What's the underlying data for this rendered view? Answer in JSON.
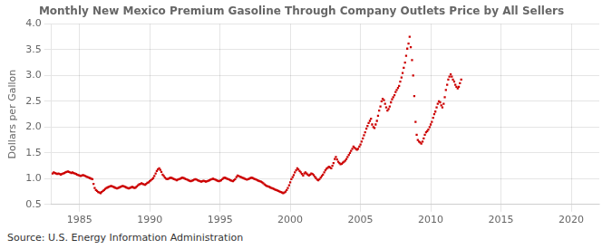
{
  "chart_data": {
    "type": "scatter",
    "title": "Monthly New Mexico Premium Gasoline Through Company Outlets Price by All Sellers",
    "ylabel": "Dollars per Gallon",
    "annotations": [
      "Source: U.S. Energy Information Administration"
    ],
    "xlim": [
      1983,
      2022
    ],
    "ylim": [
      0.5,
      4.0
    ],
    "xticks": [
      1985,
      1990,
      1995,
      2000,
      2005,
      2010,
      2015,
      2020
    ],
    "yticks": [
      0.5,
      {
        "value": 1.0,
        "label": "1.0"
      },
      1.5,
      {
        "value": 2.0,
        "label": "2.0"
      },
      2.5,
      {
        "value": 3.0,
        "label": "3.0"
      },
      3.5,
      {
        "value": 4.0,
        "label": "4.0"
      }
    ],
    "grid": true,
    "marker": "square",
    "color": "#cc0000",
    "x": [
      1983.08,
      1983.17,
      1983.25,
      1983.33,
      1983.42,
      1983.5,
      1983.58,
      1983.67,
      1983.75,
      1983.83,
      1983.92,
      1984.0,
      1984.08,
      1984.17,
      1984.25,
      1984.33,
      1984.42,
      1984.5,
      1984.58,
      1984.67,
      1984.75,
      1984.83,
      1984.92,
      1985.0,
      1985.08,
      1985.17,
      1985.25,
      1985.33,
      1985.42,
      1985.5,
      1985.58,
      1985.67,
      1985.75,
      1985.83,
      1985.92,
      1986.0,
      1986.08,
      1986.17,
      1986.25,
      1986.33,
      1986.42,
      1986.5,
      1986.58,
      1986.67,
      1986.75,
      1986.83,
      1986.92,
      1987.0,
      1987.08,
      1987.17,
      1987.25,
      1987.33,
      1987.42,
      1987.5,
      1987.58,
      1987.67,
      1987.75,
      1987.83,
      1987.92,
      1988.0,
      1988.08,
      1988.17,
      1988.25,
      1988.33,
      1988.42,
      1988.5,
      1988.58,
      1988.67,
      1988.75,
      1988.83,
      1988.92,
      1989.0,
      1989.08,
      1989.17,
      1989.25,
      1989.33,
      1989.42,
      1989.5,
      1989.58,
      1989.67,
      1989.75,
      1989.83,
      1989.92,
      1990.0,
      1990.08,
      1990.17,
      1990.25,
      1990.33,
      1990.42,
      1990.5,
      1990.58,
      1990.67,
      1990.75,
      1990.83,
      1990.92,
      1991.0,
      1991.08,
      1991.17,
      1991.25,
      1991.33,
      1991.42,
      1991.5,
      1991.58,
      1991.67,
      1991.75,
      1991.83,
      1991.92,
      1992.0,
      1992.08,
      1992.17,
      1992.25,
      1992.33,
      1992.42,
      1992.5,
      1992.58,
      1992.67,
      1992.75,
      1992.83,
      1992.92,
      1993.0,
      1993.08,
      1993.17,
      1993.25,
      1993.33,
      1993.42,
      1993.5,
      1993.58,
      1993.67,
      1993.75,
      1993.83,
      1993.92,
      1994.0,
      1994.08,
      1994.17,
      1994.25,
      1994.33,
      1994.42,
      1994.5,
      1994.58,
      1994.67,
      1994.75,
      1994.83,
      1994.92,
      1995.0,
      1995.08,
      1995.17,
      1995.25,
      1995.33,
      1995.42,
      1995.5,
      1995.58,
      1995.67,
      1995.75,
      1995.83,
      1995.92,
      1996.0,
      1996.08,
      1996.17,
      1996.25,
      1996.33,
      1996.42,
      1996.5,
      1996.58,
      1996.67,
      1996.75,
      1996.83,
      1996.92,
      1997.0,
      1997.08,
      1997.17,
      1997.25,
      1997.33,
      1997.42,
      1997.5,
      1997.58,
      1997.67,
      1997.75,
      1997.83,
      1997.92,
      1998.0,
      1998.08,
      1998.17,
      1998.25,
      1998.33,
      1998.42,
      1998.5,
      1998.58,
      1998.67,
      1998.75,
      1998.83,
      1998.92,
      1999.0,
      1999.08,
      1999.17,
      1999.25,
      1999.33,
      1999.42,
      1999.5,
      1999.58,
      1999.67,
      1999.75,
      1999.83,
      1999.92,
      2000.0,
      2000.08,
      2000.17,
      2000.25,
      2000.33,
      2000.42,
      2000.5,
      2000.58,
      2000.67,
      2000.75,
      2000.83,
      2000.92,
      2001.0,
      2001.08,
      2001.17,
      2001.25,
      2001.33,
      2001.42,
      2001.5,
      2001.58,
      2001.67,
      2001.75,
      2001.83,
      2001.92,
      2002.0,
      2002.08,
      2002.17,
      2002.25,
      2002.33,
      2002.42,
      2002.5,
      2002.58,
      2002.67,
      2002.75,
      2002.83,
      2002.92,
      2003.0,
      2003.08,
      2003.17,
      2003.25,
      2003.33,
      2003.42,
      2003.5,
      2003.58,
      2003.67,
      2003.75,
      2003.83,
      2003.92,
      2004.0,
      2004.08,
      2004.17,
      2004.25,
      2004.33,
      2004.42,
      2004.5,
      2004.58,
      2004.67,
      2004.75,
      2004.83,
      2004.92,
      2005.0,
      2005.08,
      2005.17,
      2005.25,
      2005.33,
      2005.42,
      2005.5,
      2005.58,
      2005.67,
      2005.75,
      2005.83,
      2005.92,
      2006.0,
      2006.08,
      2006.17,
      2006.25,
      2006.33,
      2006.42,
      2006.5,
      2006.58,
      2006.67,
      2006.75,
      2006.83,
      2006.92,
      2007.0,
      2007.08,
      2007.17,
      2007.25,
      2007.33,
      2007.42,
      2007.5,
      2007.58,
      2007.67,
      2007.75,
      2007.83,
      2007.92,
      2008.0,
      2008.08,
      2008.17,
      2008.25,
      2008.33,
      2008.42,
      2008.5,
      2008.58,
      2008.67,
      2008.75,
      2008.83,
      2008.92,
      2009.0,
      2009.08,
      2009.17,
      2009.25,
      2009.33,
      2009.42,
      2009.5,
      2009.58,
      2009.67,
      2009.75,
      2009.83,
      2009.92,
      2010.0,
      2010.08,
      2010.17,
      2010.25,
      2010.33,
      2010.42,
      2010.5,
      2010.58,
      2010.67,
      2010.75,
      2010.83,
      2010.92,
      2011.0,
      2011.08,
      2011.17,
      2011.25,
      2011.33,
      2011.42,
      2011.5,
      2011.58,
      2011.67,
      2011.75,
      2011.83,
      2011.92,
      2012.0,
      2012.08,
      2012.17
    ],
    "values": [
      1.1,
      1.12,
      1.11,
      1.1,
      1.09,
      1.1,
      1.09,
      1.08,
      1.09,
      1.1,
      1.11,
      1.12,
      1.13,
      1.14,
      1.13,
      1.12,
      1.11,
      1.12,
      1.11,
      1.1,
      1.09,
      1.08,
      1.07,
      1.06,
      1.05,
      1.06,
      1.07,
      1.06,
      1.05,
      1.04,
      1.03,
      1.02,
      1.01,
      1.0,
      0.99,
      0.9,
      0.82,
      0.78,
      0.76,
      0.74,
      0.73,
      0.72,
      0.74,
      0.76,
      0.78,
      0.8,
      0.82,
      0.83,
      0.84,
      0.85,
      0.86,
      0.85,
      0.84,
      0.83,
      0.82,
      0.81,
      0.82,
      0.83,
      0.84,
      0.85,
      0.86,
      0.85,
      0.84,
      0.83,
      0.82,
      0.81,
      0.82,
      0.83,
      0.84,
      0.83,
      0.82,
      0.83,
      0.85,
      0.87,
      0.89,
      0.9,
      0.91,
      0.9,
      0.89,
      0.88,
      0.9,
      0.92,
      0.93,
      0.95,
      0.97,
      0.99,
      1.01,
      1.05,
      1.1,
      1.15,
      1.18,
      1.2,
      1.17,
      1.13,
      1.08,
      1.05,
      1.02,
      1.0,
      0.99,
      1.0,
      1.01,
      1.02,
      1.01,
      1.0,
      0.99,
      0.98,
      0.97,
      0.98,
      0.99,
      1.0,
      1.01,
      1.02,
      1.01,
      1.0,
      0.99,
      0.98,
      0.97,
      0.96,
      0.95,
      0.96,
      0.97,
      0.98,
      0.99,
      0.98,
      0.97,
      0.96,
      0.95,
      0.94,
      0.95,
      0.96,
      0.95,
      0.94,
      0.95,
      0.96,
      0.97,
      0.98,
      0.99,
      1.0,
      0.99,
      0.98,
      0.97,
      0.96,
      0.95,
      0.96,
      0.97,
      0.99,
      1.01,
      1.02,
      1.01,
      1.0,
      0.99,
      0.98,
      0.97,
      0.96,
      0.95,
      0.97,
      0.99,
      1.03,
      1.06,
      1.05,
      1.04,
      1.03,
      1.02,
      1.01,
      1.0,
      0.99,
      0.98,
      0.99,
      1.0,
      1.01,
      1.02,
      1.01,
      1.0,
      0.99,
      0.98,
      0.97,
      0.96,
      0.95,
      0.94,
      0.93,
      0.91,
      0.89,
      0.87,
      0.86,
      0.85,
      0.84,
      0.83,
      0.82,
      0.81,
      0.8,
      0.79,
      0.78,
      0.77,
      0.76,
      0.75,
      0.74,
      0.73,
      0.72,
      0.73,
      0.75,
      0.78,
      0.82,
      0.87,
      0.93,
      0.99,
      1.03,
      1.07,
      1.12,
      1.16,
      1.2,
      1.18,
      1.15,
      1.12,
      1.09,
      1.06,
      1.1,
      1.12,
      1.1,
      1.08,
      1.06,
      1.08,
      1.1,
      1.09,
      1.07,
      1.04,
      1.01,
      0.98,
      0.97,
      0.99,
      1.02,
      1.05,
      1.08,
      1.12,
      1.16,
      1.19,
      1.21,
      1.23,
      1.22,
      1.2,
      1.25,
      1.3,
      1.38,
      1.42,
      1.37,
      1.33,
      1.3,
      1.28,
      1.29,
      1.31,
      1.33,
      1.35,
      1.38,
      1.42,
      1.46,
      1.5,
      1.54,
      1.58,
      1.62,
      1.6,
      1.58,
      1.56,
      1.58,
      1.62,
      1.66,
      1.72,
      1.78,
      1.84,
      1.9,
      1.97,
      2.02,
      2.08,
      2.12,
      2.16,
      2.05,
      2.0,
      1.98,
      2.05,
      2.12,
      2.22,
      2.32,
      2.4,
      2.5,
      2.55,
      2.52,
      2.45,
      2.38,
      2.32,
      2.35,
      2.4,
      2.48,
      2.54,
      2.58,
      2.62,
      2.68,
      2.72,
      2.76,
      2.8,
      2.88,
      2.96,
      3.05,
      3.15,
      3.25,
      3.38,
      3.52,
      3.62,
      3.75,
      3.55,
      3.3,
      3.0,
      2.6,
      2.1,
      1.85,
      1.75,
      1.72,
      1.7,
      1.68,
      1.72,
      1.78,
      1.85,
      1.9,
      1.92,
      1.95,
      2.0,
      2.05,
      2.1,
      2.18,
      2.25,
      2.3,
      2.38,
      2.45,
      2.5,
      2.48,
      2.42,
      2.38,
      2.45,
      2.58,
      2.72,
      2.82,
      2.92,
      2.98,
      3.02,
      2.98,
      2.92,
      2.88,
      2.82,
      2.78,
      2.75,
      2.78,
      2.85,
      2.92
    ]
  }
}
